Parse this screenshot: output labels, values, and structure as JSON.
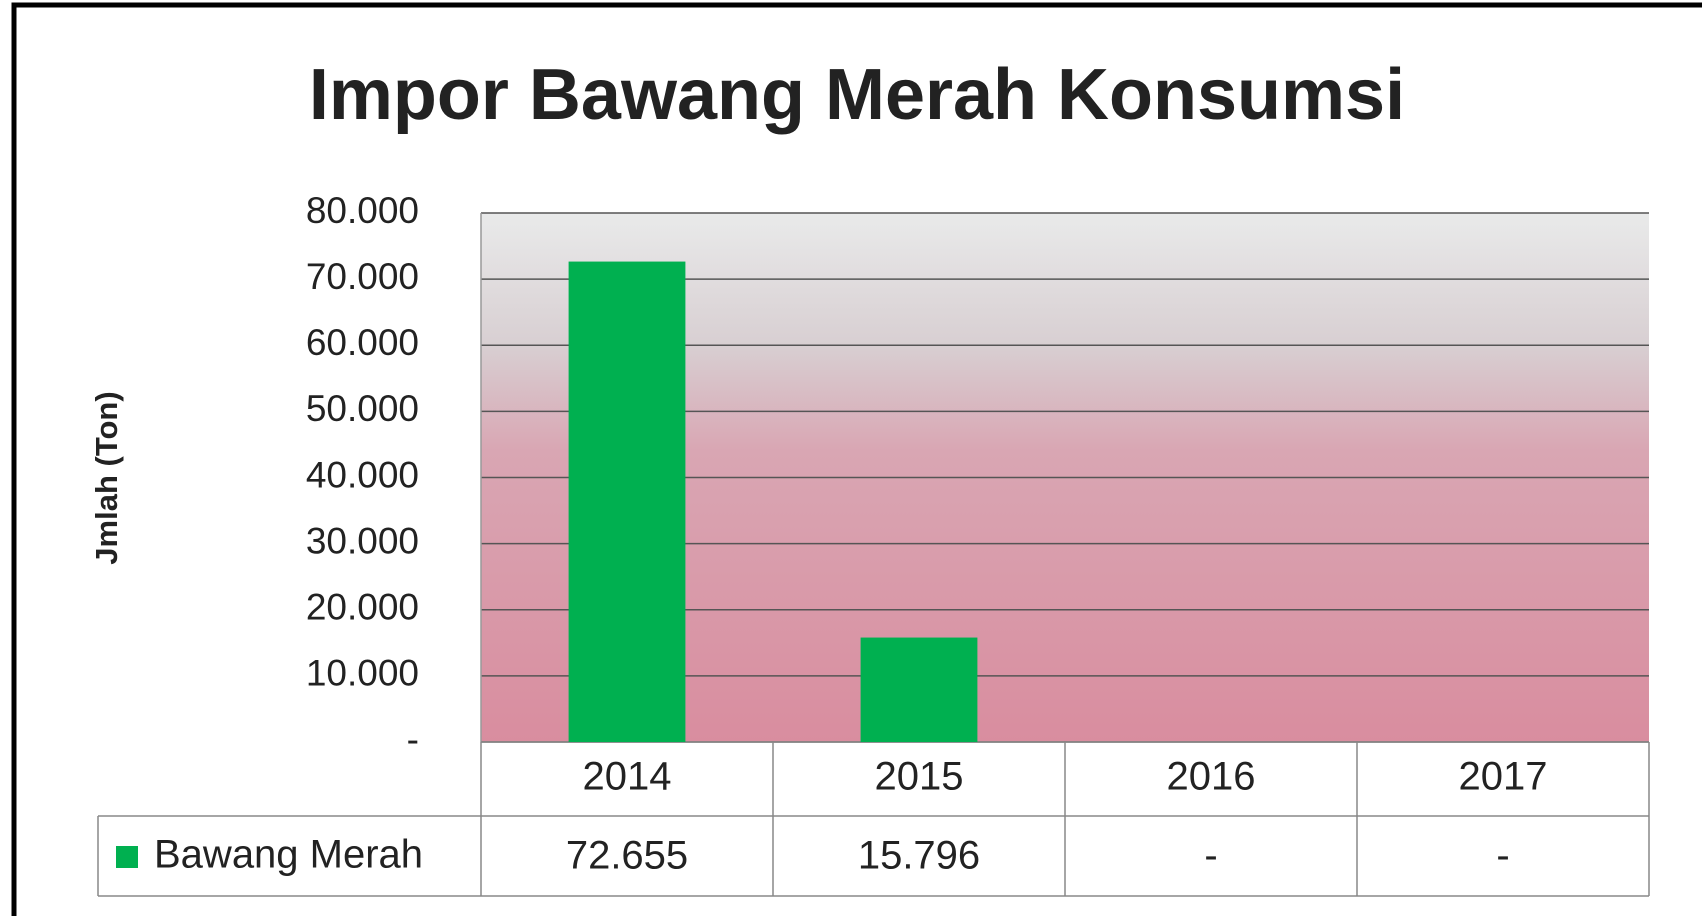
{
  "chart_data": {
    "type": "bar",
    "title": "Impor Bawang Merah Konsumsi",
    "y_label": "Jmlah (Ton)",
    "categories": [
      "2014",
      "2015",
      "2016",
      "2017"
    ],
    "series": [
      {
        "name": "Bawang Merah",
        "color": "#00b050",
        "values": [
          72655,
          15796,
          null,
          null
        ],
        "value_labels": [
          "72.655",
          "15.796",
          "-",
          "-"
        ]
      }
    ],
    "ylim": [
      0,
      80000
    ],
    "yticks": [
      {
        "value": 0,
        "label": "-"
      },
      {
        "value": 10000,
        "label": "10.000"
      },
      {
        "value": 20000,
        "label": "20.000"
      },
      {
        "value": 30000,
        "label": "30.000"
      },
      {
        "value": 40000,
        "label": "40.000"
      },
      {
        "value": 50000,
        "label": "50.000"
      },
      {
        "value": 60000,
        "label": "60.000"
      },
      {
        "value": 70000,
        "label": "70.000"
      },
      {
        "value": 80000,
        "label": "80.000"
      }
    ],
    "grid": true,
    "data_table": true
  }
}
